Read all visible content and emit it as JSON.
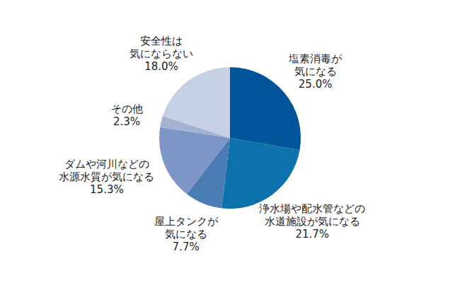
{
  "chart_data": {
    "type": "pie",
    "categories": [
      "塩素消毒が\n気になる",
      "浄水場や配水管などの\n水道施設が気になる",
      "屋上タンクが\n気になる",
      "ダムや河川などの\n水源水質が気になる",
      "その他",
      "安全性は\n気にならない"
    ],
    "values": [
      25.0,
      21.7,
      7.7,
      15.3,
      2.3,
      18.0
    ],
    "value_labels": [
      "25.0%",
      "21.7%",
      "7.7%",
      "15.3%",
      "2.3%",
      "18.0%"
    ],
    "colors": [
      "#00549a",
      "#0c72ab",
      "#4a7bb3",
      "#7e96c7",
      "#a3b1d3",
      "#c6d0e5"
    ],
    "data_labels": true
  }
}
